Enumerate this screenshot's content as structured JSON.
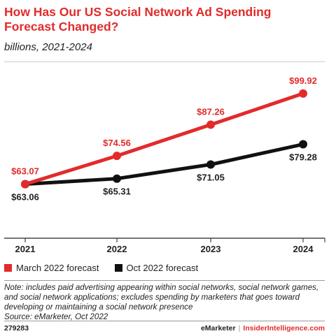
{
  "header": {
    "title": "How Has Our US Social Network Ad Spending Forecast Changed?",
    "subtitle": "billions, 2021-2024"
  },
  "chart_data": {
    "type": "line",
    "x": [
      "2021",
      "2022",
      "2023",
      "2024"
    ],
    "series": [
      {
        "name": "March 2022 forecast",
        "color": "#e22b2b",
        "values": [
          63.07,
          74.56,
          87.26,
          99.92
        ],
        "labels": [
          "$63.07",
          "$74.56",
          "$87.26",
          "$99.92"
        ]
      },
      {
        "name": "Oct 2022 forecast",
        "color": "#111111",
        "values": [
          63.06,
          65.31,
          71.05,
          79.28
        ],
        "labels": [
          "$63.06",
          "$65.31",
          "$71.05",
          "$79.28"
        ]
      }
    ],
    "ylim": [
      55,
      105
    ],
    "grid": false,
    "legend_position": "bottom-left"
  },
  "legend": {
    "items": [
      {
        "label": "March 2022 forecast",
        "color": "#e22b2b"
      },
      {
        "label": "Oct 2022 forecast",
        "color": "#111111"
      }
    ]
  },
  "footer": {
    "note": "Note: includes paid advertising appearing within social networks, social network games, and social network applications; excludes spending by marketers that goes toward developing or maintaining a social network presence",
    "source": "Source: eMarketer, Oct 2022",
    "chart_id": "279283",
    "brand_left": "eMarketer",
    "brand_sep": "|",
    "brand_right": "InsiderIntelligence.com"
  }
}
